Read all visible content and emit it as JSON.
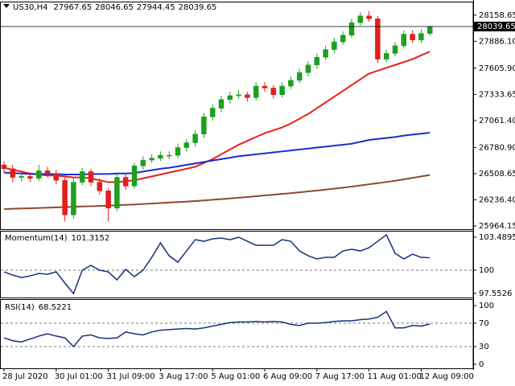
{
  "chart_data": [
    {
      "type": "candlestick",
      "title": "US30,H4",
      "up_color": "#1f9e1f",
      "down_color": "#e0201b",
      "x": [
        "28 Jul 2020",
        null,
        null,
        null,
        null,
        null,
        "30 Jul 01:00",
        null,
        null,
        null,
        null,
        null,
        "31 Jul 09:00",
        null,
        null,
        null,
        null,
        null,
        "3 Aug 17:00",
        null,
        null,
        null,
        null,
        null,
        "5 Aug 01:00",
        null,
        null,
        null,
        null,
        null,
        "6 Aug 09:00",
        null,
        null,
        null,
        null,
        null,
        "7 Aug 17:00",
        null,
        null,
        null,
        null,
        null,
        "11 Aug 01:00",
        null,
        null,
        null,
        null,
        null,
        "12 Aug 09:00",
        null
      ],
      "open": [
        26600,
        26560,
        26470,
        26480,
        26460,
        26540,
        26510,
        26440,
        26080,
        26420,
        26530,
        26420,
        26330,
        26150,
        26470,
        26380,
        26590,
        26650,
        26670,
        26700,
        26700,
        26780,
        26830,
        26920,
        27100,
        27190,
        27280,
        27320,
        27330,
        27300,
        27420,
        27400,
        27330,
        27420,
        27480,
        27560,
        27640,
        27720,
        27800,
        27880,
        27950,
        28080,
        28150,
        28120,
        27700,
        27760,
        27840,
        27960,
        27900,
        27967.65
      ],
      "high": [
        26640,
        26600,
        26520,
        26520,
        26600,
        26580,
        26550,
        26480,
        26460,
        26570,
        26560,
        26460,
        26360,
        26510,
        26500,
        26620,
        26690,
        26710,
        26740,
        26740,
        26820,
        26870,
        26960,
        27140,
        27230,
        27320,
        27360,
        27380,
        27360,
        27460,
        27460,
        27430,
        27460,
        27520,
        27600,
        27680,
        27760,
        27840,
        27920,
        27990,
        28120,
        28190,
        28200,
        28150,
        27800,
        27880,
        28000,
        28000,
        28010,
        28046.65
      ],
      "low": [
        26520,
        26420,
        26430,
        26420,
        26430,
        26470,
        26400,
        26010,
        26040,
        26390,
        26380,
        26290,
        26010,
        26120,
        26340,
        26350,
        26550,
        26620,
        26640,
        26660,
        26670,
        26740,
        26790,
        26880,
        27060,
        27150,
        27240,
        27290,
        27260,
        27270,
        27360,
        27290,
        27300,
        27390,
        27450,
        27520,
        27600,
        27690,
        27760,
        27850,
        27920,
        28050,
        28090,
        27660,
        27670,
        27730,
        27810,
        27870,
        27870,
        27944.45
      ],
      "close": [
        26560,
        26470,
        26480,
        26460,
        26540,
        26510,
        26440,
        26080,
        26420,
        26530,
        26420,
        26330,
        26150,
        26470,
        26380,
        26590,
        26650,
        26670,
        26700,
        26700,
        26780,
        26830,
        26920,
        27100,
        27190,
        27280,
        27320,
        27330,
        27300,
        27420,
        27400,
        27330,
        27420,
        27480,
        27560,
        27640,
        27720,
        27800,
        27880,
        27950,
        28080,
        28150,
        28120,
        27700,
        27760,
        27840,
        27960,
        27900,
        27967.65,
        28039.65
      ],
      "series": [
        {
          "color": "#e8201c",
          "values": [
            26570,
            26550,
            26530,
            26510,
            26500,
            26490,
            26490,
            26480,
            26470,
            26470,
            26460,
            26440,
            26420,
            26420,
            26430,
            26440,
            26460,
            26480,
            26500,
            26520,
            26540,
            26560,
            26580,
            26620,
            26660,
            26710,
            26760,
            26810,
            26850,
            26890,
            26930,
            26960,
            26990,
            27030,
            27080,
            27130,
            27190,
            27250,
            27310,
            27370,
            27430,
            27490,
            27550,
            27580,
            27610,
            27640,
            27670,
            27700,
            27740,
            27780
          ]
        },
        {
          "color": "#1a2ecf",
          "values": [
            26520,
            26515,
            26510,
            26505,
            26505,
            26505,
            26505,
            26500,
            26500,
            26500,
            26505,
            26505,
            26505,
            26510,
            26510,
            26515,
            26530,
            26545,
            26560,
            26570,
            26585,
            26600,
            26615,
            26630,
            26645,
            26660,
            26675,
            26690,
            26700,
            26710,
            26720,
            26730,
            26740,
            26750,
            26760,
            26770,
            26780,
            26790,
            26800,
            26810,
            26820,
            26840,
            26860,
            26870,
            26880,
            26890,
            26905,
            26915,
            26925,
            26935
          ]
        },
        {
          "color": "#8b4a2a",
          "values": [
            26140,
            26143,
            26146,
            26149,
            26152,
            26155,
            26158,
            26161,
            26164,
            26167,
            26170,
            26173,
            26176,
            26180,
            26184,
            26188,
            26193,
            26198,
            26203,
            26208,
            26213,
            26218,
            26224,
            26230,
            26237,
            26244,
            26251,
            26258,
            26266,
            26274,
            26282,
            26290,
            26298,
            26306,
            26315,
            26324,
            26333,
            26343,
            26353,
            26363,
            26374,
            26386,
            26398,
            26410,
            26422,
            26435,
            26450,
            26465,
            26480,
            26495
          ]
        }
      ],
      "ylim": [
        25931,
        28299
      ],
      "yticks": [
        28158.65,
        {
          "value": 27886.1,
          "label": "27886.10"
        },
        {
          "value": 27605.9,
          "label": "27605.90"
        },
        27333.65,
        {
          "value": 27061.4,
          "label": "27061.40"
        },
        {
          "value": 26780.9,
          "label": "26780.90"
        },
        26508.65,
        {
          "value": 26236.4,
          "label": "26236.40"
        },
        25964.15
      ]
    },
    {
      "type": "line",
      "title": "Momentum(14)",
      "color": "#16307a",
      "values": [
        99.83,
        99.49,
        99.23,
        99.4,
        99.66,
        99.57,
        99.83,
        98.64,
        97.53,
        100,
        100.51,
        100,
        99.83,
        98.98,
        100.09,
        99.32,
        100,
        101.36,
        102.89,
        101.53,
        100.85,
        102.04,
        103.23,
        103.06,
        103.32,
        103.4,
        103.23,
        103.49,
        103.06,
        102.64,
        102.64,
        102.64,
        103.23,
        103.06,
        102.04,
        101.53,
        101.19,
        101.36,
        101.36,
        102.04,
        102.21,
        102.04,
        102.38,
        103.06,
        103.74,
        101.79,
        101.19,
        101.7,
        101.36,
        101.3152
      ],
      "ylim": [
        97.11,
        104.17
      ],
      "yticks": [
        103.4895,
        100,
        97.5526
      ],
      "levels": [
        100
      ]
    },
    {
      "type": "line",
      "title": "RSI(14)",
      "color": "#16307a",
      "values": [
        45,
        40,
        38,
        43,
        48,
        52,
        48,
        45,
        30,
        48,
        50,
        45,
        44,
        45,
        55,
        52,
        50,
        55,
        58,
        59,
        60,
        61,
        60,
        62,
        65,
        68,
        71,
        72,
        72,
        73,
        72,
        73,
        72,
        68,
        66,
        70,
        70,
        71,
        73,
        74,
        74,
        76,
        77,
        80,
        90,
        62,
        62,
        66,
        65,
        68.5221
      ],
      "ylim": [
        -7,
        111
      ],
      "yticks": [
        100,
        70,
        30,
        0
      ],
      "levels": [
        70,
        30
      ]
    }
  ]
}
